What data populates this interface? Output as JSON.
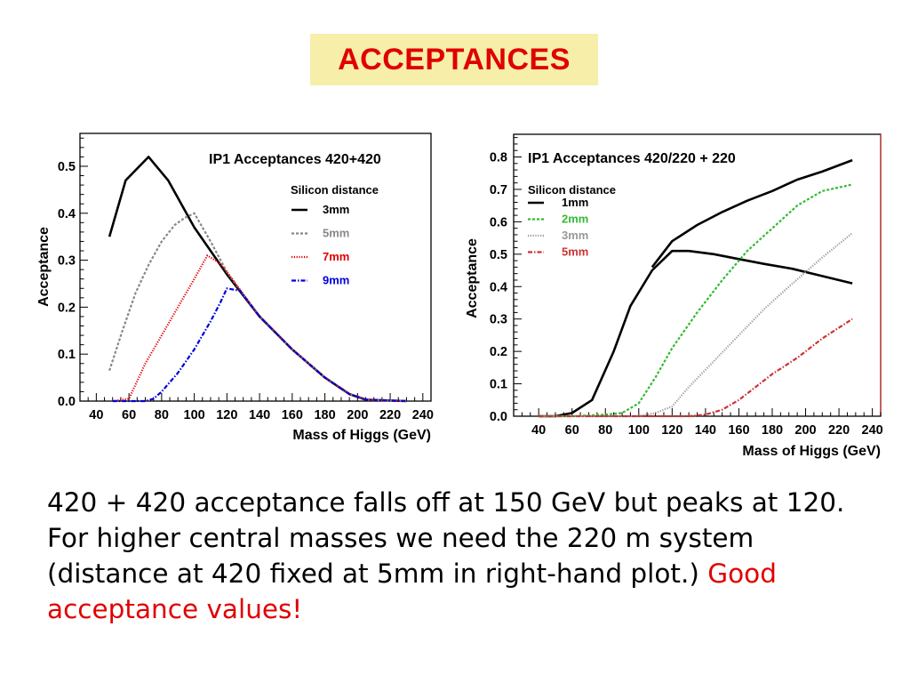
{
  "slide_title": "ACCEPTANCES",
  "caption": {
    "text": "420 + 420 acceptance falls off at 150 GeV but peaks at 120.  For higher central masses we need the 220 m system (distance at 420 fixed at 5mm in right-hand plot.)",
    "highlight": "Good acceptance values!"
  },
  "chart_data": [
    {
      "type": "line",
      "title": "IP1  Acceptances 420+420",
      "legend_title": "Silicon distance",
      "legend_position": "top-right",
      "xlabel": "Mass of Higgs (GeV)",
      "ylabel": "Acceptance",
      "xlim": [
        30,
        245
      ],
      "ylim": [
        0,
        0.57
      ],
      "xticks": [
        "40",
        "60",
        "80",
        "100",
        "120",
        "140",
        "160",
        "180",
        "200",
        "220",
        "240"
      ],
      "yticks": [
        "0.0",
        "0.1",
        "0.2",
        "0.3",
        "0.4",
        "0.5"
      ],
      "grid": false,
      "series": [
        {
          "name": "3mm",
          "color": "#000000",
          "style": "solid",
          "x": [
            48,
            58,
            72,
            84,
            100,
            120,
            140,
            160,
            180,
            195,
            205,
            230
          ],
          "y": [
            0.35,
            0.47,
            0.52,
            0.47,
            0.37,
            0.27,
            0.18,
            0.11,
            0.05,
            0.015,
            0.003,
            0.0
          ]
        },
        {
          "name": "5mm",
          "color": "#888888",
          "style": "dense-dot",
          "x": [
            48,
            56,
            64,
            72,
            80,
            88,
            94,
            100,
            110,
            120,
            140,
            160,
            180,
            195,
            205,
            230
          ],
          "y": [
            0.065,
            0.15,
            0.23,
            0.29,
            0.34,
            0.375,
            0.39,
            0.4,
            0.34,
            0.275,
            0.18,
            0.11,
            0.05,
            0.015,
            0.003,
            0.0
          ]
        },
        {
          "name": "7mm",
          "color": "#e00000",
          "style": "fine-dot",
          "x": [
            50,
            60,
            62,
            70,
            80,
            90,
            100,
            108,
            115,
            120,
            140,
            160,
            180,
            195,
            205,
            230
          ],
          "y": [
            0.0,
            0.005,
            0.02,
            0.08,
            0.14,
            0.2,
            0.26,
            0.31,
            0.295,
            0.275,
            0.18,
            0.11,
            0.05,
            0.015,
            0.003,
            0.0
          ]
        },
        {
          "name": "9mm",
          "color": "#0000dd",
          "style": "dash-dot",
          "x": [
            50,
            60,
            70,
            75,
            80,
            90,
            100,
            110,
            116,
            120,
            128,
            140,
            160,
            180,
            195,
            205,
            230
          ],
          "y": [
            0.0,
            0.0,
            0.0,
            0.005,
            0.02,
            0.06,
            0.11,
            0.17,
            0.21,
            0.24,
            0.235,
            0.18,
            0.11,
            0.05,
            0.015,
            0.003,
            0.0
          ]
        }
      ]
    },
    {
      "type": "line",
      "title": "IP1  Acceptances 420/220 + 220",
      "legend_title": "Silicon distance",
      "legend_position": "top-left",
      "xlabel": "Mass of Higgs (GeV)",
      "ylabel": "Acceptance",
      "xlim": [
        25,
        245
      ],
      "ylim": [
        0,
        0.87
      ],
      "xticks": [
        "40",
        "60",
        "80",
        "100",
        "120",
        "140",
        "160",
        "180",
        "200",
        "220",
        "240"
      ],
      "yticks": [
        "0.0",
        "0.1",
        "0.2",
        "0.3",
        "0.4",
        "0.5",
        "0.6",
        "0.7",
        "0.8"
      ],
      "grid": false,
      "series": [
        {
          "name": "1mm",
          "color": "#000000",
          "style": "solid",
          "x": [
            40,
            50,
            60,
            72,
            85,
            95,
            108,
            120,
            130,
            145,
            160,
            175,
            192,
            208,
            228
          ],
          "y": [
            0.0,
            0.0,
            0.01,
            0.05,
            0.2,
            0.34,
            0.45,
            0.51,
            0.51,
            0.5,
            0.485,
            0.47,
            0.455,
            0.435,
            0.41
          ]
        },
        {
          "name": "1mm",
          "color": "#000000",
          "style": "solid",
          "x": [
            108,
            120,
            135,
            150,
            165,
            180,
            195,
            210,
            228
          ],
          "y": [
            0.46,
            0.54,
            0.59,
            0.63,
            0.665,
            0.695,
            0.73,
            0.755,
            0.79
          ]
        },
        {
          "name": "2mm",
          "color": "#33bb33",
          "style": "dense-dot",
          "x": [
            40,
            60,
            80,
            90,
            100,
            110,
            120,
            135,
            150,
            165,
            180,
            195,
            210,
            228
          ],
          "y": [
            0.0,
            0.0,
            0.005,
            0.01,
            0.04,
            0.12,
            0.21,
            0.32,
            0.42,
            0.51,
            0.58,
            0.65,
            0.695,
            0.715
          ]
        },
        {
          "name": "3mm",
          "color": "#999999",
          "style": "fine-dot",
          "x": [
            40,
            100,
            110,
            120,
            130,
            145,
            160,
            175,
            190,
            210,
            228
          ],
          "y": [
            0.0,
            0.0,
            0.01,
            0.03,
            0.09,
            0.17,
            0.25,
            0.33,
            0.4,
            0.49,
            0.565
          ]
        },
        {
          "name": "5mm",
          "color": "#cc3333",
          "style": "dash-dot",
          "x": [
            40,
            130,
            140,
            150,
            160,
            170,
            180,
            195,
            210,
            228
          ],
          "y": [
            0.0,
            0.0,
            0.005,
            0.02,
            0.05,
            0.09,
            0.13,
            0.18,
            0.24,
            0.3
          ]
        }
      ]
    }
  ]
}
